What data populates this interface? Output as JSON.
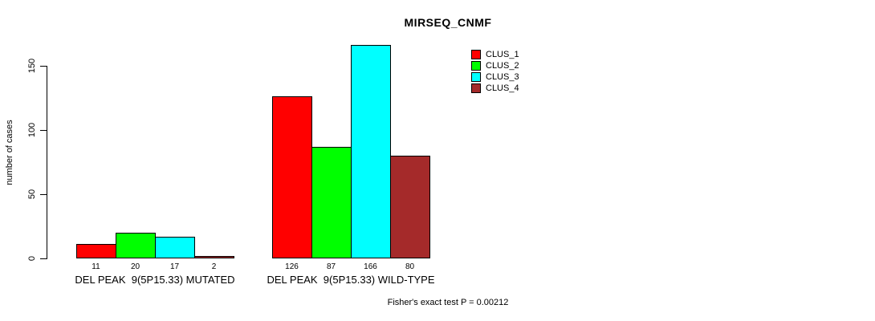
{
  "chart_data": {
    "type": "bar",
    "title": "MIRSEQ_CNMF",
    "ylabel": "number of cases",
    "xlabel": "",
    "categories": [
      "DEL PEAK  9(5P15.33) MUTATED",
      "DEL PEAK  9(5P15.33) WILD-TYPE"
    ],
    "series": [
      {
        "name": "CLUS_1",
        "color": "#ff0000",
        "values": [
          11,
          126
        ]
      },
      {
        "name": "CLUS_2",
        "color": "#00ff00",
        "values": [
          20,
          87
        ]
      },
      {
        "name": "CLUS_3",
        "color": "#00ffff",
        "values": [
          17,
          166
        ]
      },
      {
        "name": "CLUS_4",
        "color": "#a52a2a",
        "values": [
          2,
          80
        ]
      }
    ],
    "bar_value_labels": [
      [
        "11",
        "20",
        "17",
        "2"
      ],
      [
        "126",
        "87",
        "166",
        "80"
      ]
    ],
    "yticks": [
      "0",
      "50",
      "100",
      "150"
    ],
    "ylim": [
      0,
      150
    ],
    "grid": false,
    "legend_position": "top-right",
    "annotation": "Fisher's exact test P = 0.00212"
  }
}
